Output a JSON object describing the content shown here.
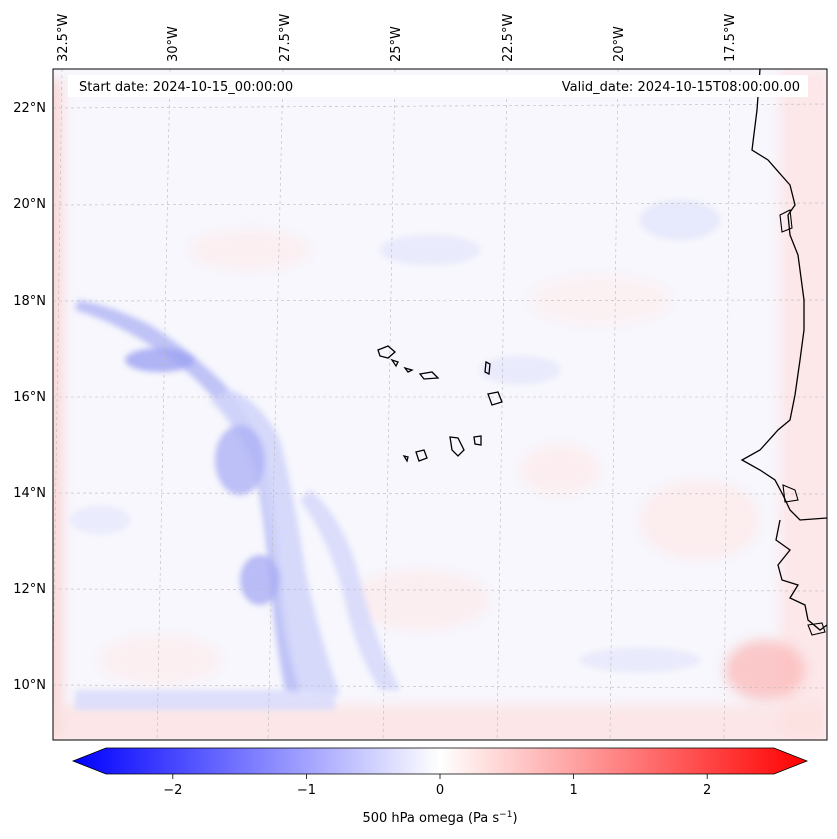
{
  "header": {
    "start_date": "Start date: 2024-10-15_00:00:00",
    "valid_date": "Valid_date: 2024-10-15T08:00:00.00"
  },
  "longitude_labels": [
    "32.5°W",
    "30°W",
    "27.5°W",
    "25°W",
    "22.5°W",
    "20°W",
    "17.5°W"
  ],
  "latitude_labels": [
    "22°N",
    "20°N",
    "18°N",
    "16°N",
    "14°N",
    "12°N",
    "10°N"
  ],
  "colorbar": {
    "ticks": [
      {
        "value": -2,
        "label": "−2"
      },
      {
        "value": -1,
        "label": "−1"
      },
      {
        "value": 0,
        "label": "0"
      },
      {
        "value": 1,
        "label": "1"
      },
      {
        "value": 2,
        "label": "2"
      }
    ],
    "range": [
      -2.5,
      2.5
    ],
    "label_main": "500 hPa omega (Pa s",
    "label_exp": "−1",
    "label_close": ")",
    "colors": {
      "negative": "#0000ff",
      "zero": "#ffffff",
      "positive": "#ff0000"
    }
  }
}
